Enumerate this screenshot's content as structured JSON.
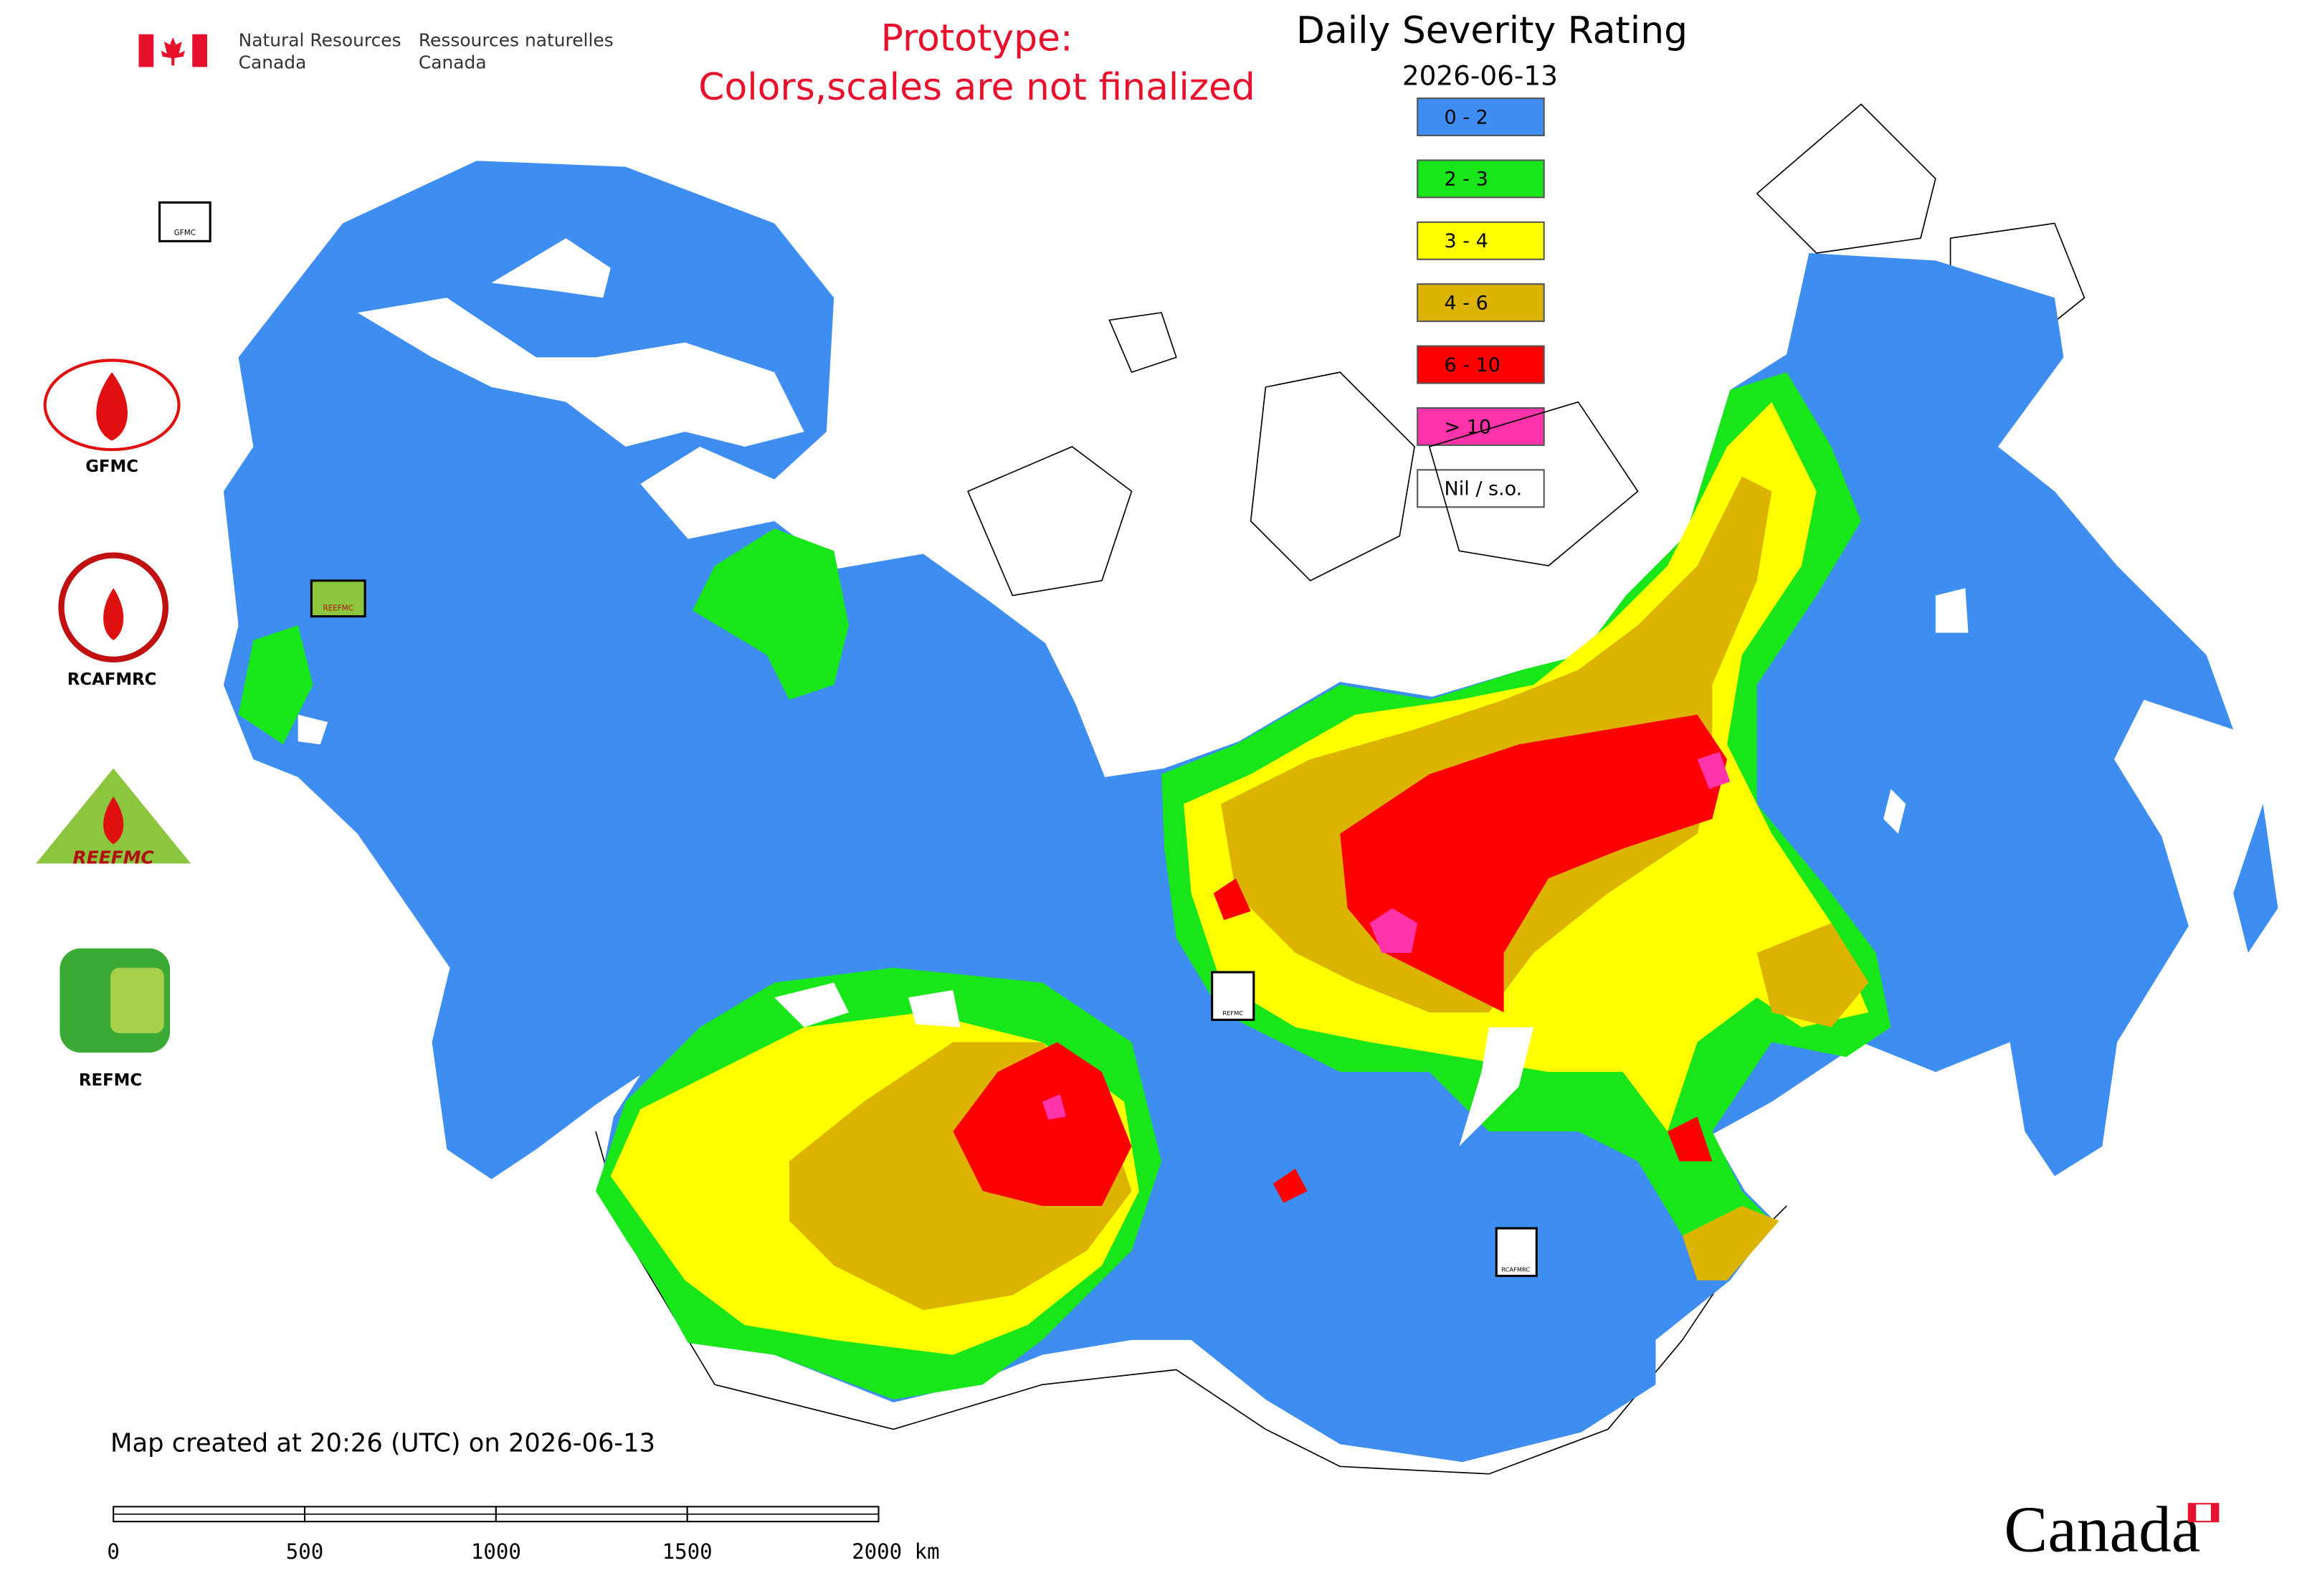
{
  "header": {
    "department_en": [
      "Natural Resources",
      "Canada"
    ],
    "department_fr": [
      "Ressources naturelles",
      "Canada"
    ],
    "wordmark": "Canada"
  },
  "notice": [
    "Prototype:",
    "Colors,scales are not finalized"
  ],
  "legend": {
    "title": "Daily Severity Rating",
    "date": "2026-06-13",
    "items": [
      {
        "label": "0 - 2",
        "color": "#3d8ef0"
      },
      {
        "label": "2 - 3",
        "color": "#19e619"
      },
      {
        "label": "3 - 4",
        "color": "#ffff00"
      },
      {
        "label": "4 - 6",
        "color": "#dcb400"
      },
      {
        "label": "6 - 10",
        "color": "#ff0000"
      },
      {
        "label": "> 10",
        "color": "#ff33aa"
      },
      {
        "label": "Nil / s.o.",
        "color": "#ffffff"
      }
    ]
  },
  "logos": [
    "GFMC",
    "RCAFMRC",
    "REEFMC",
    "REFMC"
  ],
  "footer": {
    "created": "Map created at 20:26 (UTC) on 2026-06-13",
    "scale": [
      "0",
      "500",
      "1000",
      "1500",
      "2000 km"
    ]
  }
}
